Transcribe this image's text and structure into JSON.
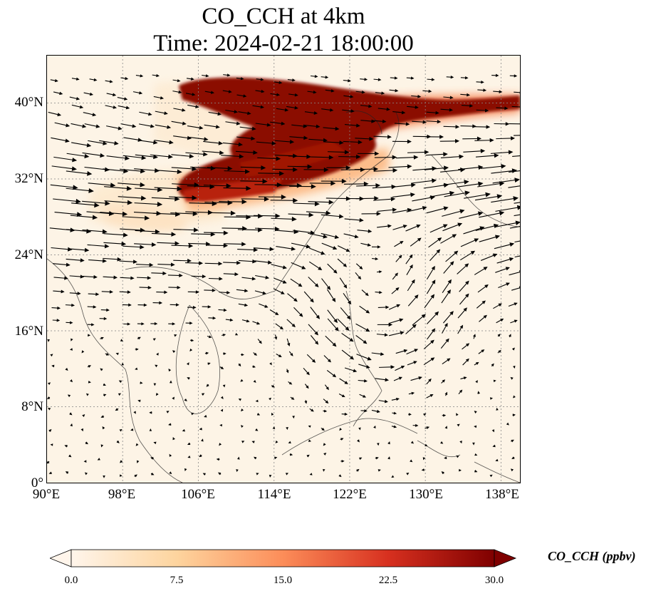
{
  "title": {
    "line1": "CO_CCH at 4km",
    "line2": "Time: 2024-02-21 18:00:00"
  },
  "map": {
    "lon_range": [
      90,
      140
    ],
    "lat_range": [
      0,
      45
    ],
    "lat_ticks": [
      "0°",
      "8°N",
      "16°N",
      "24°N",
      "32°N",
      "40°N"
    ],
    "lon_ticks": [
      "90°E",
      "98°E",
      "106°E",
      "114°E",
      "122°E",
      "130°E",
      "138°E"
    ],
    "gridlines": true,
    "field": "CO_CCH concentration with wind vectors",
    "plume_description": "high CO_CCH band from ~103°E to 140°E between ~30°N and 43°N"
  },
  "colorbar": {
    "label": "CO_CCH (ppbv)",
    "ticks": [
      "0.0",
      "7.5",
      "15.0",
      "22.5",
      "30.0"
    ],
    "min": 0,
    "max": 30,
    "colors": [
      "#fff5eb",
      "#fdd49e",
      "#fc8d59",
      "#d7301f",
      "#7f0000"
    ]
  }
}
